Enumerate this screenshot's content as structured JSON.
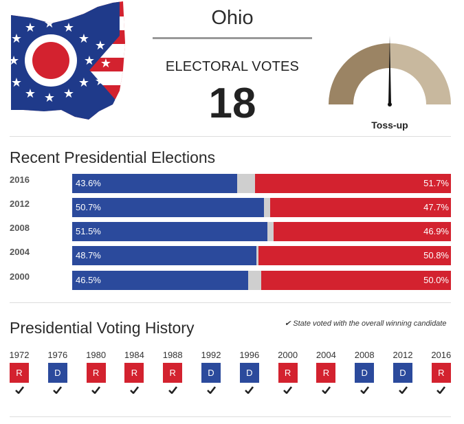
{
  "header": {
    "state_name": "Ohio",
    "electoral_label": "ELECTORAL VOTES",
    "electoral_votes": "18",
    "rating": {
      "label": "Toss-up",
      "needle_position": 0.5
    },
    "icons": {
      "flag_map": "ohio-flag-map-icon",
      "gauge": "rating-gauge-icon"
    }
  },
  "colors": {
    "democrat": "#2b4a9c",
    "republican": "#d3222f",
    "other": "#cfcfcf",
    "gauge_left": "#9b8464",
    "gauge_right": "#c8b89e"
  },
  "recent": {
    "title": "Recent Presidential Elections",
    "rows": [
      {
        "year": "2016",
        "dem_label": "43.6%",
        "rep_label": "51.7%",
        "dem": 43.6,
        "rep": 51.7
      },
      {
        "year": "2012",
        "dem_label": "50.7%",
        "rep_label": "47.7%",
        "dem": 50.7,
        "rep": 47.7
      },
      {
        "year": "2008",
        "dem_label": "51.5%",
        "rep_label": "46.9%",
        "dem": 51.5,
        "rep": 46.9
      },
      {
        "year": "2004",
        "dem_label": "48.7%",
        "rep_label": "50.8%",
        "dem": 48.7,
        "rep": 50.8
      },
      {
        "year": "2000",
        "dem_label": "46.5%",
        "rep_label": "50.0%",
        "dem": 46.5,
        "rep": 50.0
      }
    ]
  },
  "history": {
    "title": "Presidential Voting History",
    "note": "State voted with the overall winning candidate",
    "items": [
      {
        "year": "1972",
        "party": "R",
        "check": true
      },
      {
        "year": "1976",
        "party": "D",
        "check": true
      },
      {
        "year": "1980",
        "party": "R",
        "check": true
      },
      {
        "year": "1984",
        "party": "R",
        "check": true
      },
      {
        "year": "1988",
        "party": "R",
        "check": true
      },
      {
        "year": "1992",
        "party": "D",
        "check": true
      },
      {
        "year": "1996",
        "party": "D",
        "check": true
      },
      {
        "year": "2000",
        "party": "R",
        "check": true
      },
      {
        "year": "2004",
        "party": "R",
        "check": true
      },
      {
        "year": "2008",
        "party": "D",
        "check": true
      },
      {
        "year": "2012",
        "party": "D",
        "check": true
      },
      {
        "year": "2016",
        "party": "R",
        "check": true
      }
    ]
  }
}
